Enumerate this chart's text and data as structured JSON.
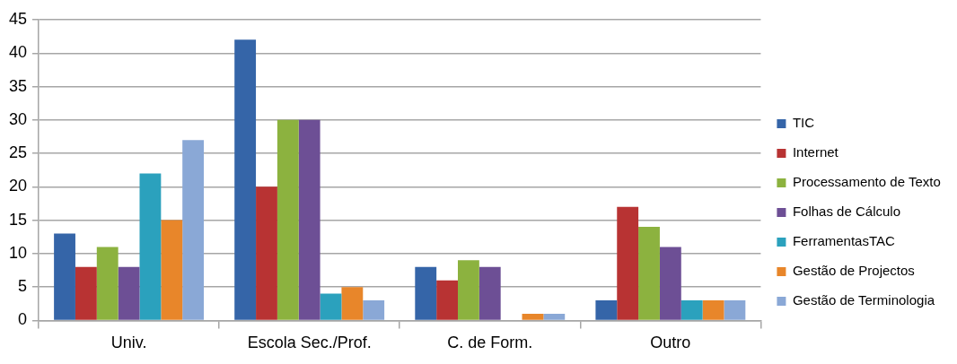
{
  "chart_data": {
    "type": "bar",
    "categories": [
      "Univ.",
      "Escola Sec./Prof.",
      "C. de Form.",
      "Outro"
    ],
    "series": [
      {
        "name": "TIC",
        "color": "#3565a8",
        "values": [
          13,
          42,
          8,
          3
        ]
      },
      {
        "name": "Internet",
        "color": "#b83333",
        "values": [
          8,
          20,
          6,
          17
        ]
      },
      {
        "name": "Processamento de Texto",
        "color": "#8cb23f",
        "values": [
          11,
          30,
          9,
          14
        ]
      },
      {
        "name": "Folhas de Cálculo",
        "color": "#6d4f95",
        "values": [
          8,
          30,
          8,
          11
        ]
      },
      {
        "name": "FerramentasTAC",
        "color": "#2ba1bd",
        "values": [
          22,
          4,
          0,
          3
        ]
      },
      {
        "name": "Gestão de Projectos",
        "color": "#e8862a",
        "values": [
          15,
          5,
          1,
          3
        ]
      },
      {
        "name": "Gestão de Terminologia",
        "color": "#8aa8d6",
        "values": [
          27,
          3,
          1,
          3
        ]
      }
    ],
    "ylim": [
      0,
      45
    ],
    "yticks": [
      0,
      5,
      10,
      15,
      20,
      25,
      30,
      35,
      40,
      45
    ],
    "grid": "y",
    "legend": "right"
  }
}
